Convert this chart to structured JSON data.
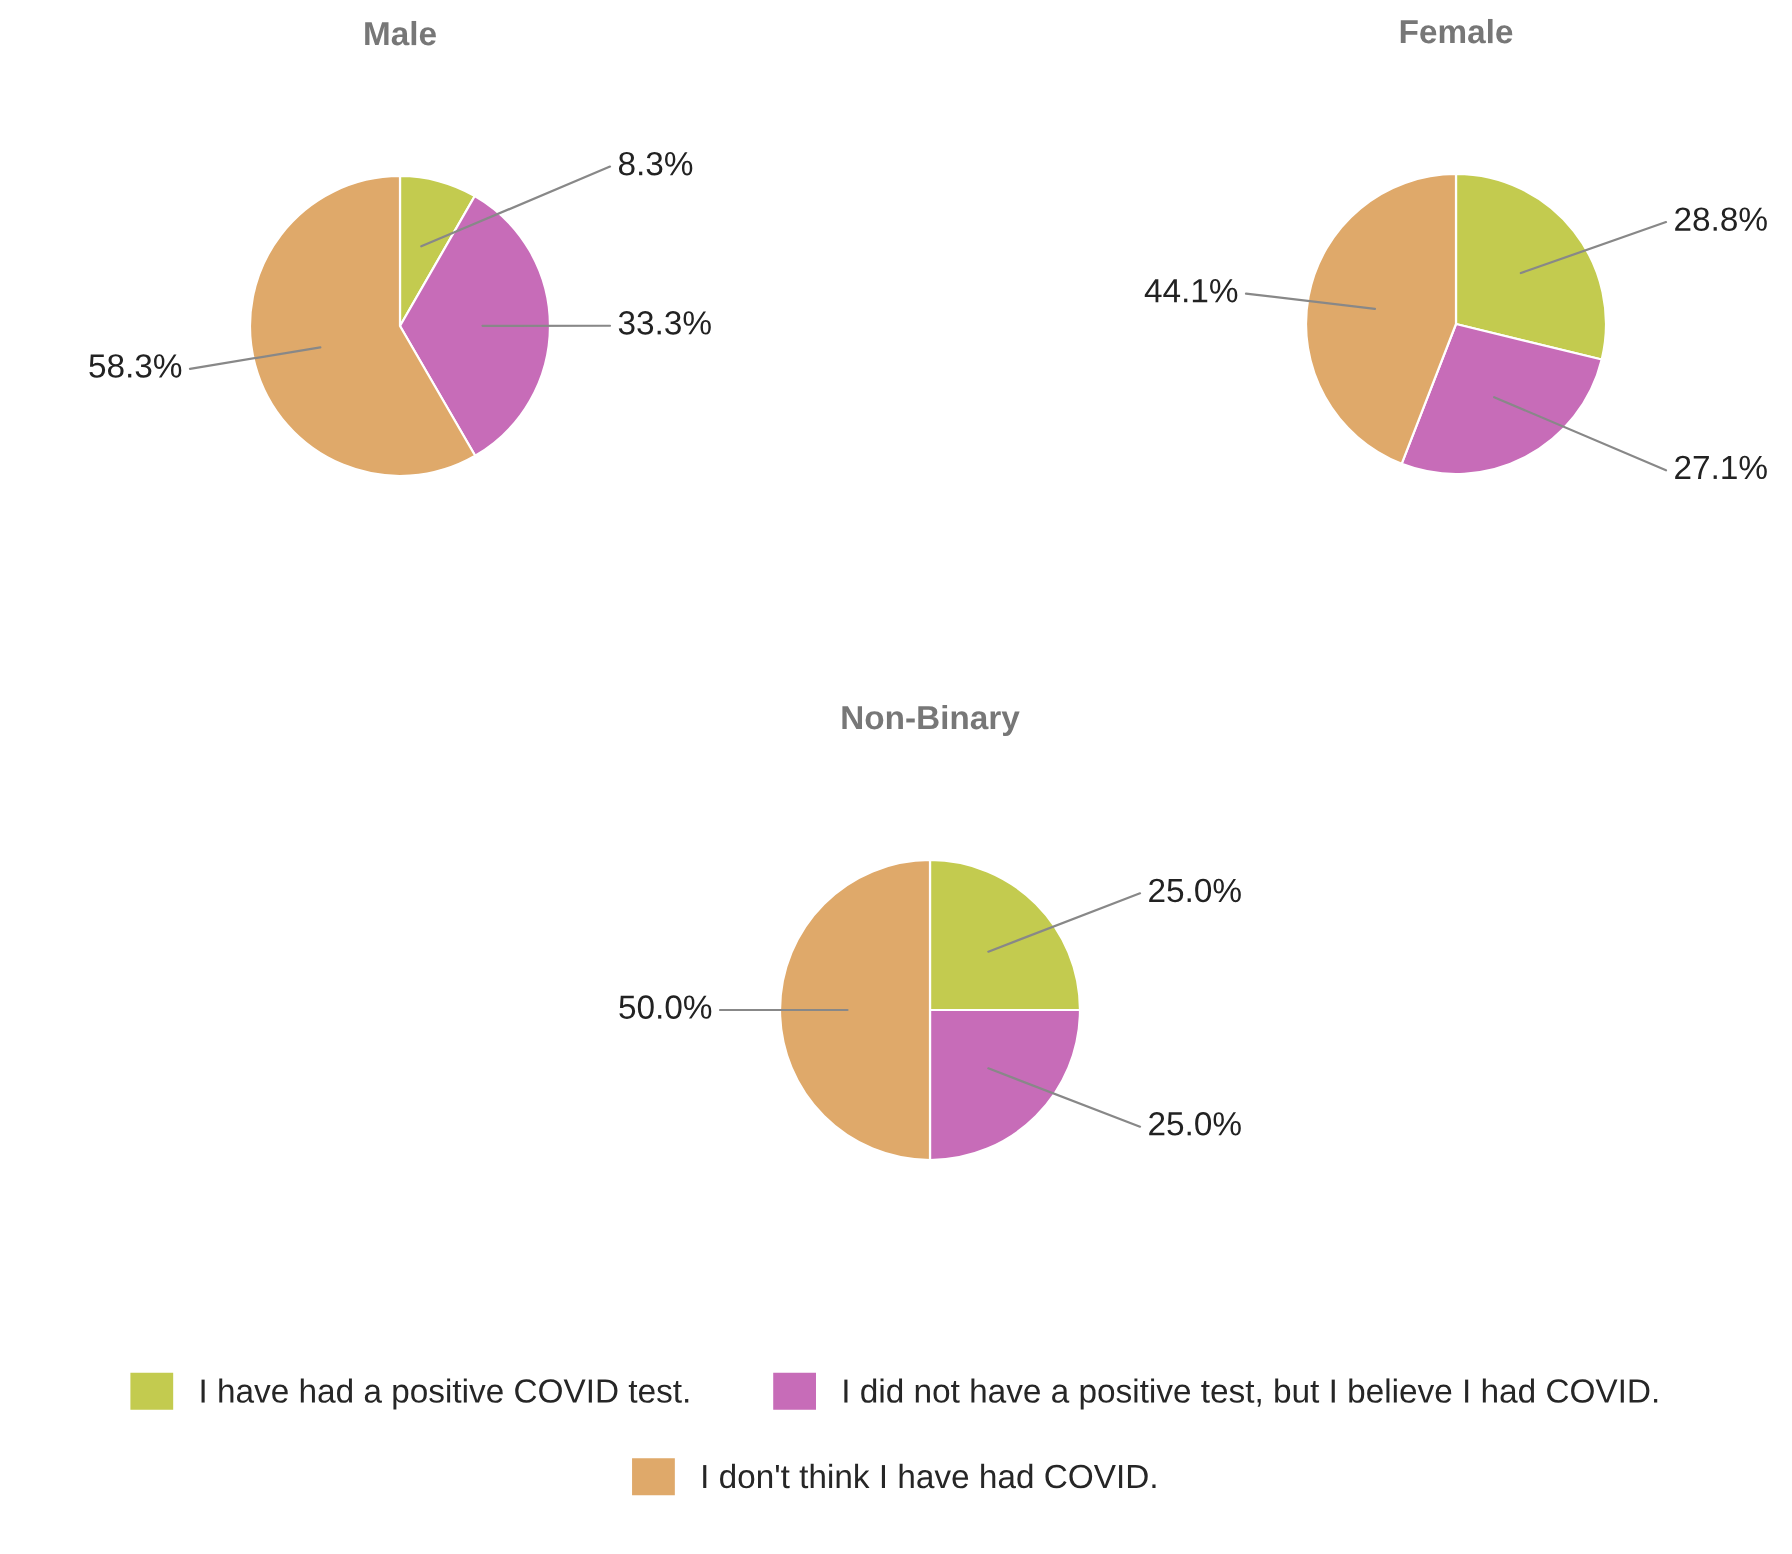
{
  "chart_data": [
    {
      "type": "pie",
      "title": "Male",
      "categories": [
        "I have had a positive COVID test.",
        "I did not have a positive test, but I believe I had COVID.",
        "I don't think I have had COVID."
      ],
      "values": [
        8.3,
        33.3,
        58.3
      ],
      "value_labels": [
        "8.3%",
        "33.3%",
        "58.3%"
      ],
      "colors": [
        "#c3cb4f",
        "#c76cb8",
        "#dfa96a"
      ],
      "legend": "bottom"
    },
    {
      "type": "pie",
      "title": "Female",
      "categories": [
        null,
        null,
        null
      ],
      "values": [
        28.8,
        27.1,
        44.1
      ],
      "value_labels": [
        "28.8%",
        "27.1%",
        "44.1%"
      ],
      "colors": [
        "#c3cb4f",
        "#c76cb8",
        "#dfa96a"
      ]
    },
    {
      "type": "pie",
      "title": "Non-Binary",
      "categories": [
        null,
        null,
        null
      ],
      "values": [
        25.0,
        25.0,
        50.0
      ],
      "value_labels": [
        "25.0%",
        "25.0%",
        "50.0%"
      ],
      "colors": [
        "#c3cb4f",
        "#c76cb8",
        "#dfa96a"
      ]
    }
  ]
}
